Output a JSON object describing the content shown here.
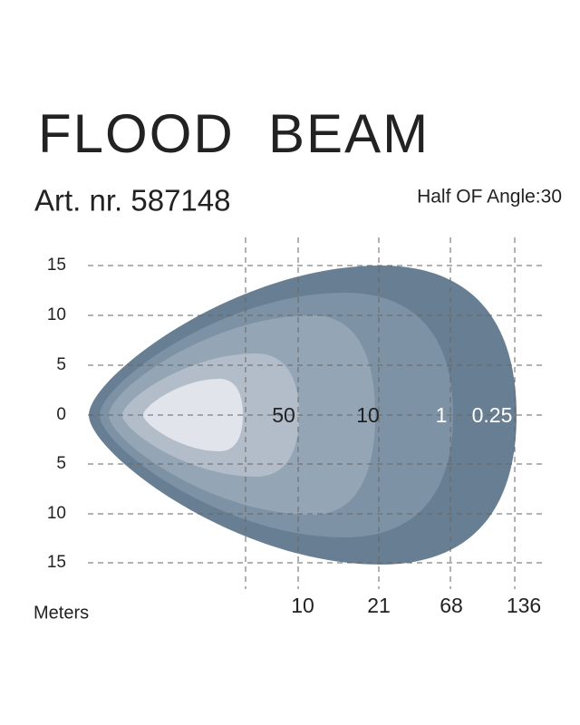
{
  "header": {
    "title": "FLOOD  BEAM",
    "article": "Art. nr. 587148",
    "angle": "Half OF Angle:30"
  },
  "diagram": {
    "y_labels": [
      "15",
      "10",
      "5",
      "0",
      "5",
      "10",
      "15"
    ],
    "x_labels": [
      "10",
      "21",
      "68",
      "136"
    ],
    "zone_labels": [
      "50",
      "10",
      "1",
      "0.25"
    ],
    "unit": "Meters"
  }
}
